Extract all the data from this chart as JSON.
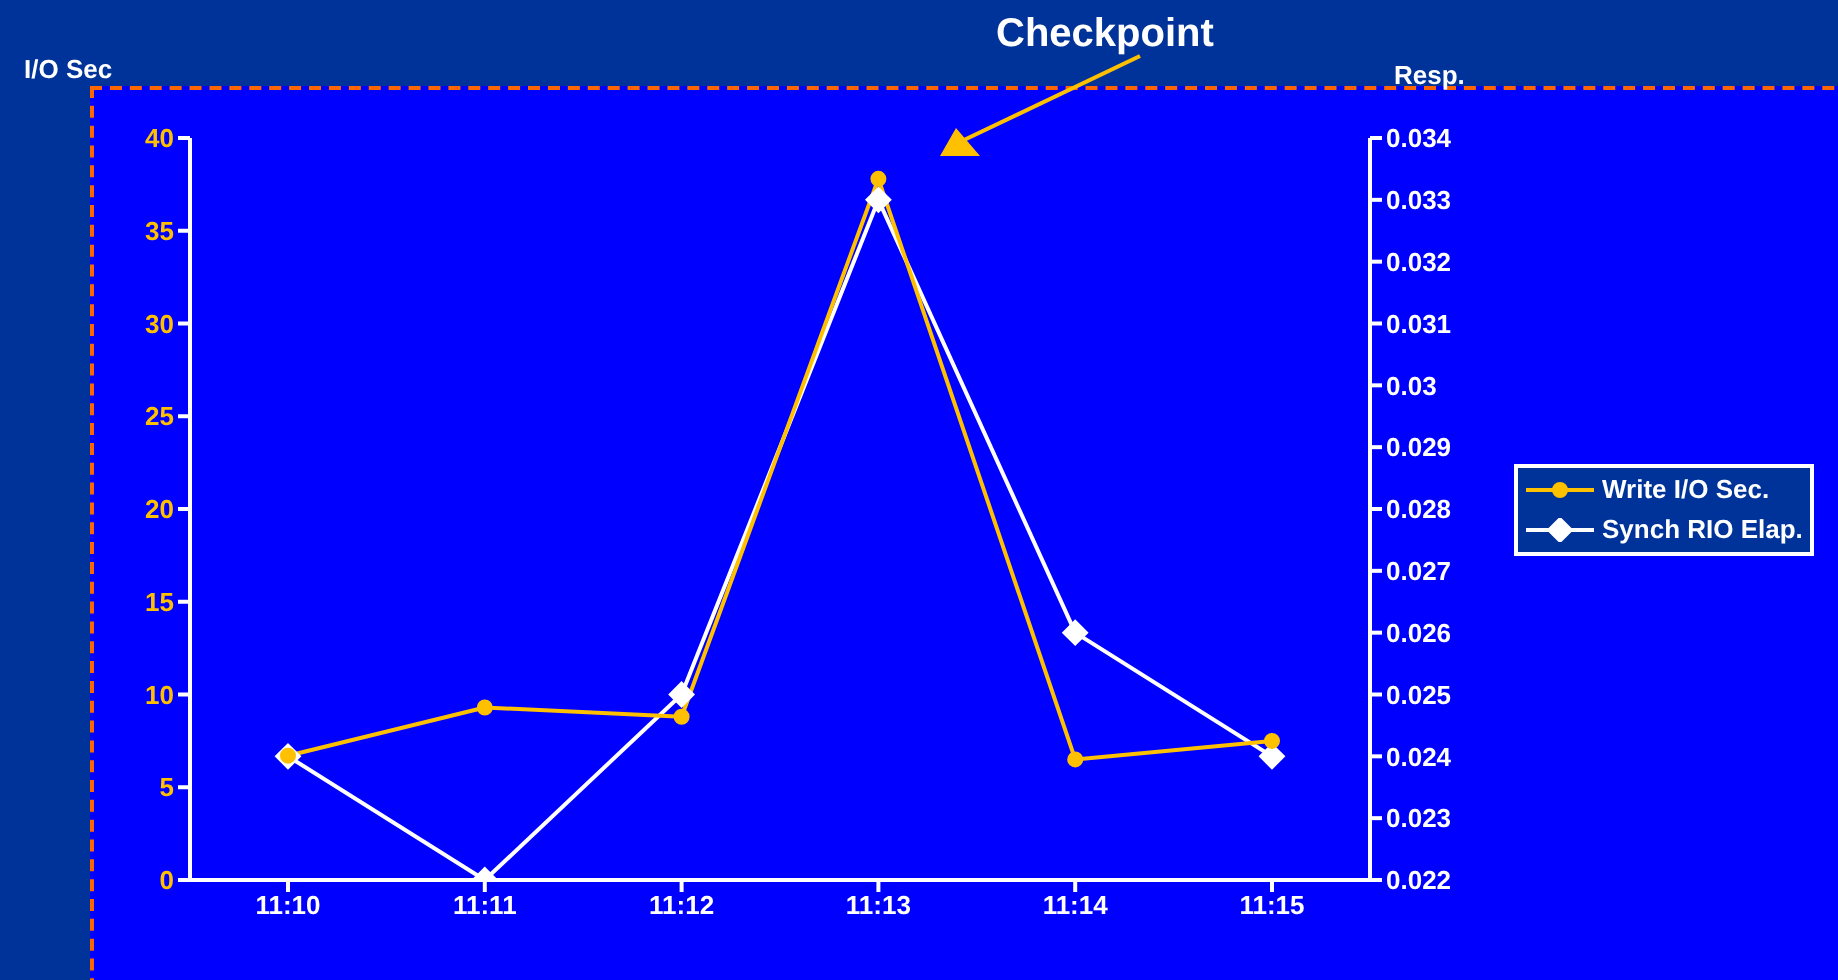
{
  "chart_data": {
    "type": "line",
    "ylabel": "I/O Sec",
    "y2label": "Resp.",
    "annotations": [
      "Checkpoint"
    ],
    "categories": [
      "11:10",
      "11:11",
      "11:12",
      "11:13",
      "11:14",
      "11:15"
    ],
    "series": [
      {
        "name": "Write I/O Sec.",
        "color": "#ffc000",
        "marker": "circle",
        "values": [
          6.7,
          9.3,
          8.8,
          37.8,
          6.5,
          7.5
        ]
      },
      {
        "name": "Synch RIO Elap.",
        "color": "#ffffff",
        "marker": "diamond",
        "axis": "y2",
        "values": [
          0.024,
          0.022,
          0.025,
          0.033,
          0.026,
          0.024
        ]
      }
    ],
    "ylim": [
      0,
      40
    ],
    "yticks": [
      0,
      5,
      10,
      15,
      20,
      25,
      30,
      35,
      40
    ],
    "y2lim": [
      0.022,
      0.034
    ],
    "y2ticks": [
      0.022,
      0.023,
      0.024,
      0.025,
      0.026,
      0.027,
      0.028,
      0.029,
      0.03,
      0.031,
      0.032,
      0.033,
      0.034
    ],
    "legend": "right",
    "grid": false,
    "line_style": "solid"
  }
}
